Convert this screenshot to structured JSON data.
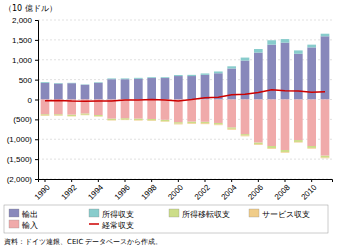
{
  "chart_data": {
    "type": "bar",
    "stacked": true,
    "grid": true,
    "legend": "bottom",
    "y_label": "（10 億ドル）",
    "source": "資料：ドイツ連銀、CEIC データベースから作成。",
    "categories": [
      "1990",
      null,
      "1992",
      null,
      "1994",
      null,
      "1996",
      null,
      "1998",
      null,
      "2000",
      null,
      "2002",
      null,
      "2004",
      null,
      "2006",
      null,
      "2008",
      null,
      "2010",
      null
    ],
    "series": [
      {
        "name": "輸出",
        "color": "#8888bb",
        "values": [
          420,
          400,
          410,
          370,
          420,
          510,
          510,
          520,
          540,
          540,
          590,
          590,
          620,
          660,
          780,
          980,
          1180,
          1380,
          1430,
          1150,
          1310,
          1590
        ]
      },
      {
        "name": "所得収支",
        "color": "#88cccc",
        "values": [
          20,
          15,
          10,
          10,
          15,
          20,
          20,
          25,
          20,
          20,
          25,
          30,
          35,
          45,
          55,
          75,
          90,
          110,
          90,
          85,
          70,
          65
        ]
      },
      {
        "name": "所得移転収支",
        "color": "#ccdd88",
        "values": [
          -30,
          -30,
          -35,
          -35,
          -32,
          -38,
          -38,
          -38,
          -38,
          -38,
          -38,
          -38,
          -38,
          -38,
          -38,
          -38,
          -45,
          -55,
          -50,
          -48,
          -48,
          -50
        ]
      },
      {
        "name": "サービス収支",
        "color": "#f0cc88",
        "values": [
          -13,
          -10,
          -10,
          -10,
          -10,
          -10,
          -10,
          -12,
          -12,
          -12,
          -18,
          -18,
          -22,
          -18,
          -22,
          -18,
          -18,
          -18,
          -18,
          -14,
          -18,
          -18
        ]
      },
      {
        "name": "輸入",
        "color": "#f0aaaa",
        "values": [
          -370,
          -370,
          -380,
          -350,
          -390,
          -480,
          -470,
          -480,
          -490,
          -510,
          -570,
          -555,
          -560,
          -590,
          -700,
          -870,
          -1080,
          -1170,
          -1270,
          -1020,
          -1170,
          -1410
        ]
      },
      {
        "name": "経常収支",
        "type": "line",
        "color": "#cc0000",
        "values": [
          -30,
          -25,
          -40,
          -45,
          -35,
          -35,
          -15,
          -10,
          0,
          -10,
          -35,
          0,
          45,
          55,
          120,
          135,
          175,
          245,
          220,
          215,
          180,
          195
        ]
      }
    ],
    "ylim": [
      -2000,
      2000
    ],
    "yticks": [
      {
        "value": -2000,
        "label": "(2,000)"
      },
      {
        "value": -1500,
        "label": "(1,500)"
      },
      {
        "value": -1000,
        "label": "(1,000)"
      },
      {
        "value": -500,
        "label": "(500)"
      },
      0,
      500,
      {
        "value": 1000,
        "label": "1,000"
      },
      {
        "value": 1500,
        "label": "1,500"
      },
      {
        "value": 2000,
        "label": "2,000"
      }
    ]
  }
}
